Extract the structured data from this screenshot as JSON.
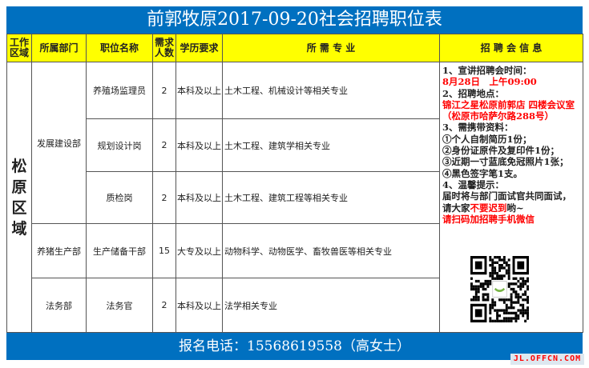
{
  "title": "前郭牧原2017-09-20社会招聘职位表",
  "headers": [
    "工作区域",
    "所属部门",
    "职位名称",
    "需求人数",
    "学历要求",
    "所 需 专 业",
    "招 聘 会 信 息"
  ],
  "region": "松原区域",
  "rows": [
    {
      "dept": "发展建设部",
      "position": "养殖场监理员",
      "count": "2",
      "education": "本科及以上",
      "major": "土木工程、机械设计等相关专业"
    },
    {
      "dept": "",
      "position": "规划设计岗",
      "count": "2",
      "education": "本科及以上",
      "major": "土木工程、建筑学相关专业"
    },
    {
      "dept": "",
      "position": "质检岗",
      "count": "2",
      "education": "本科及以上",
      "major": "土木工程、建筑工程等相关专业"
    },
    {
      "dept": "养猪生产部",
      "position": "生产储备干部",
      "count": "15",
      "education": "大专及以上",
      "major": "动物科学、动物医学、畜牧兽医等相关专业"
    },
    {
      "dept": "法务部",
      "position": "法务官",
      "count": "2",
      "education": "本科及以上",
      "major": "法学相关专业"
    }
  ],
  "info": {
    "l1": "1、宣讲招聘会时间：",
    "l2": "8月28日　上午09:00",
    "l3": "2、招聘地点：",
    "l4": "锦江之星松原前郭店 四楼会议室（松原市哈萨尔路288号）",
    "l5": "3、需携带资料：",
    "l6": "①个人自制简历1份；",
    "l7": "②身份证原件及复印件1份；",
    "l8": "③近期一寸蓝底免冠照片1张；",
    "l9": "④黑色签字笔1支。",
    "l10": "4、温馨提示：",
    "l11": "届时将与部门面试官共同面试，",
    "l12a": "请大家",
    "l12b": "不要迟到",
    "l12c": "哟~",
    "l13": "请扫码加招聘手机微信"
  },
  "footer": "报名电话：15568619558（高女士）",
  "watermark": "JL.OFFCN.COM",
  "colors": {
    "header_bg": "#0070c0",
    "column_header_bg": "#ffff00",
    "highlight": "#ff0000"
  }
}
